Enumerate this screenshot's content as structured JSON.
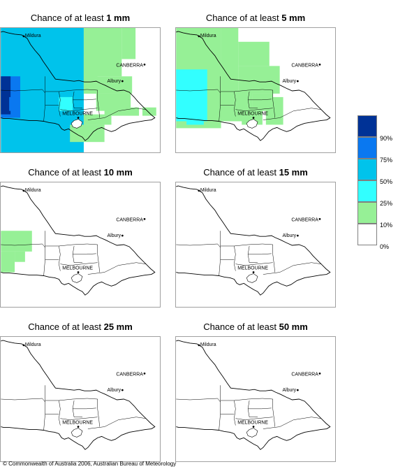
{
  "title_prefix": "Chance of at least ",
  "panels": [
    {
      "amount": "1 mm"
    },
    {
      "amount": "5 mm"
    },
    {
      "amount": "10 mm"
    },
    {
      "amount": "15 mm"
    },
    {
      "amount": "25 mm"
    },
    {
      "amount": "50 mm"
    }
  ],
  "map_labels": {
    "mildura": "Mildura",
    "canberra": "CANBERRA",
    "albury": "Albury",
    "melbourne": "MELBOURNE"
  },
  "legend": {
    "labels": [
      "90%",
      "75%",
      "50%",
      "25%",
      "10%",
      "0%"
    ],
    "colors": [
      "#003296",
      "#0a78f0",
      "#00c3eb",
      "#32ffff",
      "#96f096",
      "#ffffff"
    ]
  },
  "copyright": "© Commonwealth of Australia 2006, Australian Bureau of Meteorology"
}
